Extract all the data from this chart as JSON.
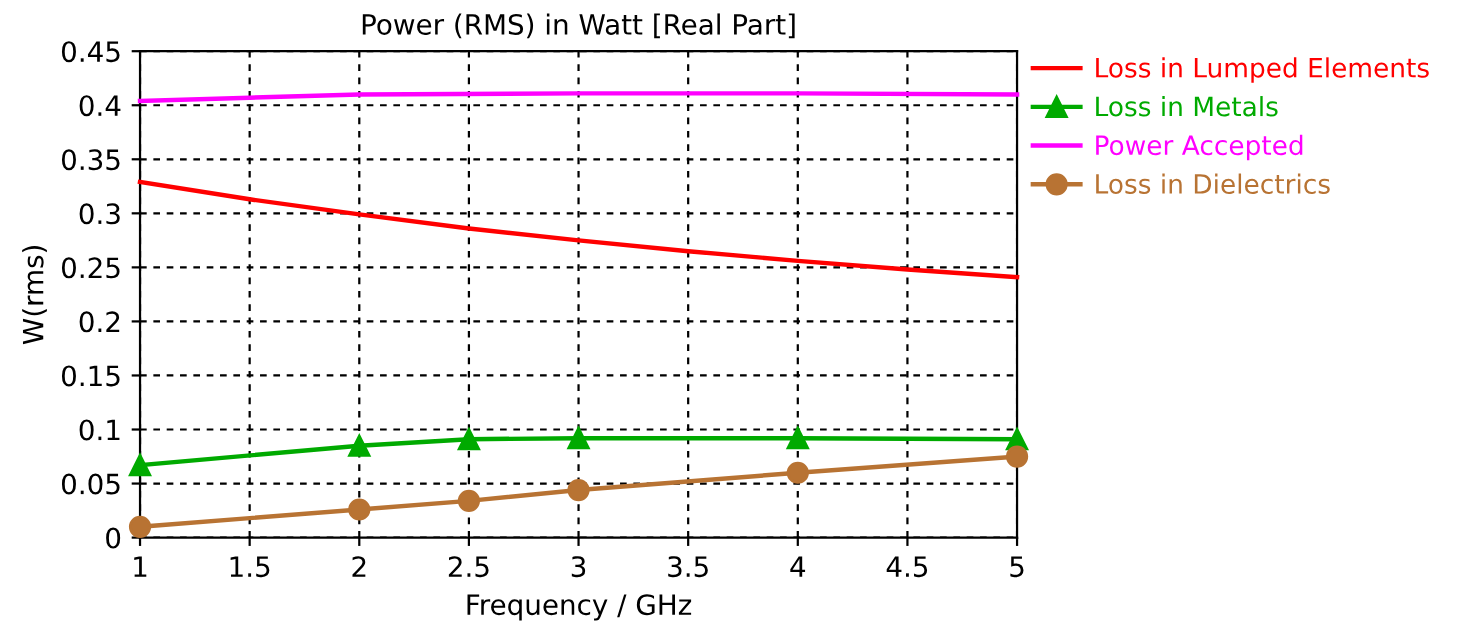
{
  "chart_data": {
    "type": "line",
    "title": "Power (RMS) in Watt [Real Part]",
    "xlabel": "Frequency / GHz",
    "ylabel": "W(rms)",
    "xlim": [
      1,
      5
    ],
    "xticks": [
      1,
      1.5,
      2,
      2.5,
      3,
      3.5,
      4,
      4.5,
      5
    ],
    "ylim": [
      0,
      0.45
    ],
    "yticks": [
      0,
      0.05,
      0.1,
      0.15,
      0.2,
      0.25,
      0.3,
      0.35,
      0.4,
      0.45
    ],
    "grid": true,
    "legend": "right",
    "series": [
      {
        "name": "Loss in Lumped Elements",
        "color": "#ff0000",
        "marker": "none",
        "x": [
          1,
          1.5,
          2,
          2.5,
          3,
          3.5,
          4,
          4.5,
          5
        ],
        "values": [
          0.329,
          0.313,
          0.299,
          0.286,
          0.275,
          0.265,
          0.256,
          0.248,
          0.241
        ]
      },
      {
        "name": "Loss in Metals",
        "color": "#00aa00",
        "marker": "triangle",
        "x": [
          1,
          2,
          2.5,
          3,
          4,
          5
        ],
        "values": [
          0.067,
          0.085,
          0.091,
          0.092,
          0.092,
          0.091
        ]
      },
      {
        "name": "Power Accepted",
        "color": "#ff00ff",
        "marker": "none",
        "x": [
          1,
          1.5,
          2,
          3,
          4,
          5
        ],
        "values": [
          0.404,
          0.407,
          0.41,
          0.411,
          0.411,
          0.41
        ]
      },
      {
        "name": "Loss in Dielectrics",
        "color": "#b87333",
        "marker": "circle",
        "x": [
          1,
          2,
          2.5,
          3,
          4,
          5
        ],
        "values": [
          0.01,
          0.026,
          0.034,
          0.044,
          0.06,
          0.075
        ]
      }
    ]
  }
}
